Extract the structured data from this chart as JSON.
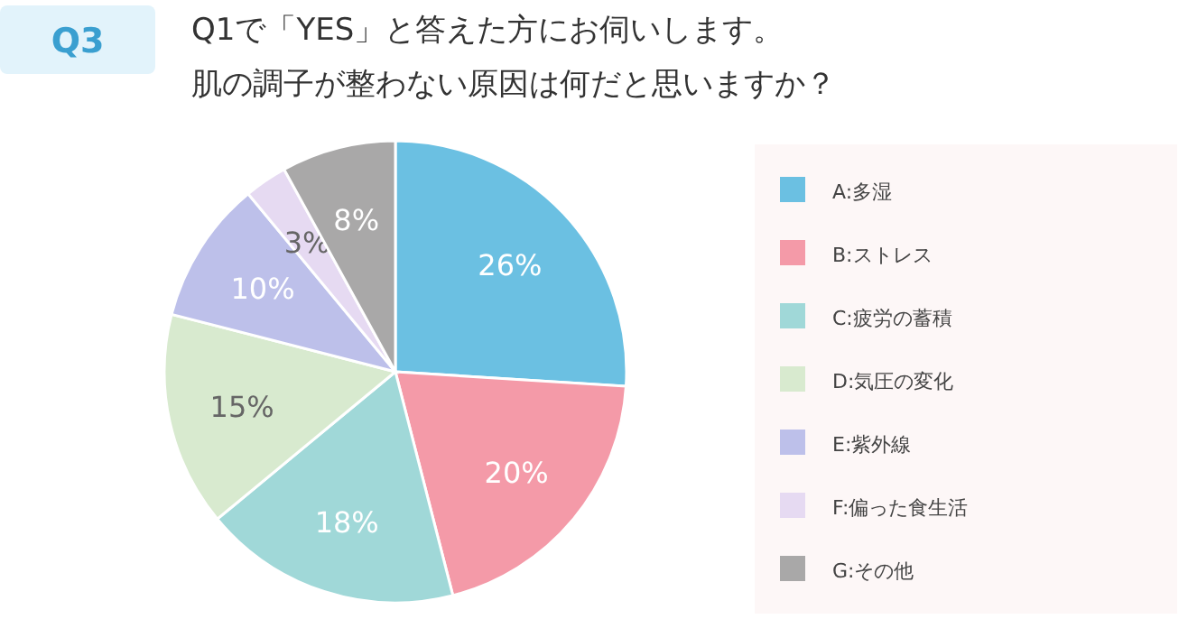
{
  "chart_data": {
    "type": "pie",
    "title": "Q1で「YES」と答えた方にお伺いします。",
    "subtitle": "肌の調子が整わない原因は何だと思いますか？",
    "annotations": [
      "Q3"
    ],
    "categories": [
      "A:多湿",
      "B:ストレス",
      "C:疲労の蓄積",
      "D:気圧の変化",
      "E:紫外線",
      "F:偏った食生活",
      "G:その他"
    ],
    "values": [
      26,
      20,
      18,
      15,
      10,
      3,
      8
    ],
    "colors": [
      "#6bc0e2",
      "#f49aa8",
      "#a0d8d8",
      "#d8eacf",
      "#bdc0ea",
      "#e6daf2",
      "#a9a8a8"
    ],
    "value_labels": [
      "26%",
      "20%",
      "18%",
      "15%",
      "10%",
      "3%",
      "8%"
    ],
    "legend": "right"
  }
}
